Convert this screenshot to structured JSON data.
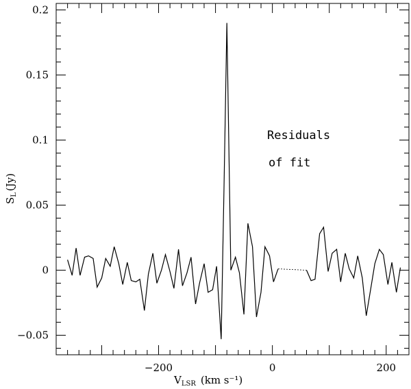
{
  "chart_data": {
    "type": "line",
    "title": "",
    "xlabel": {
      "main": "V",
      "sub": "LSR",
      "unit": "(km s⁻¹)"
    },
    "ylabel": {
      "main": "S",
      "sub": "L",
      "unit": "(Jy)"
    },
    "xlim": [
      -380,
      240
    ],
    "ylim": [
      -0.065,
      0.205
    ],
    "xticks": [
      -200,
      0,
      200
    ],
    "xtick_labels": [
      "−200",
      "0",
      "200"
    ],
    "yticks": [
      -0.05,
      0,
      0.05,
      0.1,
      0.15,
      0.2
    ],
    "ytick_labels": [
      "−0.05",
      "0",
      "0.05",
      "0.1",
      "0.15",
      "0.2"
    ],
    "grid": false,
    "annotations": [
      "Residuals",
      "of fit"
    ],
    "series": [
      {
        "points": [
          [
            -360,
            0.008
          ],
          [
            -352,
            -0.004
          ],
          [
            -345,
            0.017
          ],
          [
            -338,
            -0.004
          ],
          [
            -330,
            0.01
          ],
          [
            -323,
            0.011
          ],
          [
            -315,
            0.009
          ],
          [
            -308,
            -0.013
          ],
          [
            -300,
            -0.006
          ],
          [
            -293,
            0.009
          ],
          [
            -285,
            0.003
          ],
          [
            -278,
            0.018
          ],
          [
            -270,
            0.005
          ],
          [
            -263,
            -0.011
          ],
          [
            -255,
            0.006
          ],
          [
            -248,
            -0.008
          ],
          [
            -240,
            -0.009
          ],
          [
            -233,
            -0.007
          ],
          [
            -225,
            -0.031
          ],
          [
            -218,
            -0.003
          ],
          [
            -210,
            0.013
          ],
          [
            -203,
            -0.01
          ],
          [
            -195,
            0.0
          ],
          [
            -188,
            0.012
          ],
          [
            -180,
            -0.001
          ],
          [
            -173,
            -0.014
          ],
          [
            -165,
            0.016
          ],
          [
            -158,
            -0.012
          ],
          [
            -150,
            -0.002
          ],
          [
            -143,
            0.01
          ],
          [
            -135,
            -0.026
          ],
          [
            -128,
            -0.01
          ],
          [
            -120,
            0.005
          ],
          [
            -113,
            -0.017
          ],
          [
            -105,
            -0.015
          ],
          [
            -98,
            0.003
          ],
          [
            -90,
            -0.053
          ],
          [
            -85,
            0.063
          ],
          [
            -80,
            0.19
          ],
          [
            -73,
            0.0
          ],
          [
            -65,
            0.01
          ],
          [
            -58,
            -0.002
          ],
          [
            -50,
            -0.034
          ],
          [
            -43,
            0.036
          ],
          [
            -35,
            0.018
          ],
          [
            -28,
            -0.036
          ],
          [
            -20,
            -0.017
          ],
          [
            -13,
            0.018
          ],
          [
            -5,
            0.011
          ],
          [
            2,
            -0.009
          ],
          [
            10,
            0.001
          ],
          [
            60,
            0.0
          ],
          [
            68,
            -0.008
          ],
          [
            75,
            -0.007
          ],
          [
            83,
            0.028
          ],
          [
            90,
            0.033
          ],
          [
            98,
            -0.001
          ],
          [
            105,
            0.013
          ],
          [
            113,
            0.016
          ],
          [
            120,
            -0.009
          ],
          [
            128,
            0.013
          ],
          [
            135,
            0.001
          ],
          [
            143,
            -0.006
          ],
          [
            150,
            0.011
          ],
          [
            158,
            -0.006
          ],
          [
            165,
            -0.035
          ],
          [
            173,
            -0.014
          ],
          [
            180,
            0.005
          ],
          [
            188,
            0.016
          ],
          [
            195,
            0.012
          ],
          [
            203,
            -0.011
          ],
          [
            210,
            0.006
          ],
          [
            218,
            -0.017
          ],
          [
            225,
            0.002
          ]
        ]
      }
    ]
  }
}
